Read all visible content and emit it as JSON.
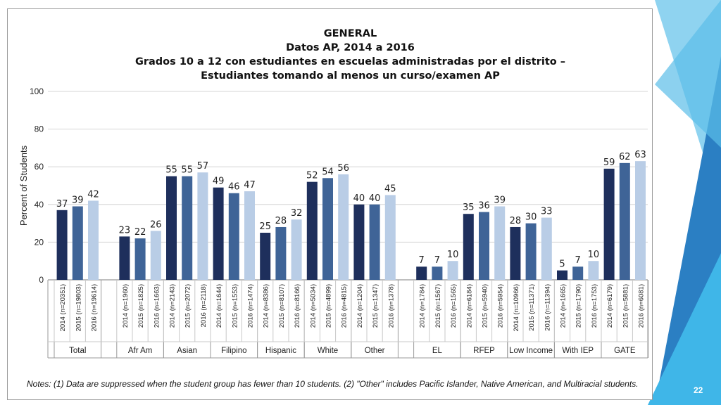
{
  "colors": {
    "accent_dark": "#1e2f5c",
    "accent_mid": "#3f6497",
    "accent_light": "#b9cde6",
    "decor_blue": "#2b7fc3",
    "decor_cyan": "#3fb6e8"
  },
  "titles": {
    "line1": "GENERAL",
    "line2": "Datos AP, 2014 a 2016",
    "line3": "Grados 10 a 12 con estudiantes en escuelas administradas por el distrito –",
    "line4": "Estudiantes tomando al menos un curso/examen AP"
  },
  "notes": "Notes: (1) Data are suppressed when the student group has fewer than 10 students. (2) \"Other\" includes Pacific Islander, Native American, and Multiracial students.",
  "page_number": "22",
  "chart_data": {
    "type": "bar",
    "title": "GENERAL Datos AP, 2014 a 2016",
    "ylabel": "Percent of Students",
    "ylim": [
      0,
      100
    ],
    "yticks": [
      0,
      20,
      40,
      60,
      80,
      100
    ],
    "grid": true,
    "legend": "none",
    "series_colors": [
      "#1e2f5c",
      "#3f6497",
      "#b9cde6"
    ],
    "groups": [
      {
        "name": "Total",
        "bars": [
          {
            "label": "2014 (n=20351)",
            "value": 37
          },
          {
            "label": "2015 (n=19803)",
            "value": 39
          },
          {
            "label": "2016 (n=19614)",
            "value": 42
          }
        ]
      },
      {
        "name": "Afr Am",
        "bars": [
          {
            "label": "2014 (n=1960)",
            "value": 23
          },
          {
            "label": "2015 (n=1825)",
            "value": 22
          },
          {
            "label": "2016 (n=1663)",
            "value": 26
          }
        ]
      },
      {
        "name": "Asian",
        "bars": [
          {
            "label": "2014 (n=2143)",
            "value": 55
          },
          {
            "label": "2015 (n=2072)",
            "value": 55
          },
          {
            "label": "2016 (n=2118)",
            "value": 57
          }
        ]
      },
      {
        "name": "Filipino",
        "bars": [
          {
            "label": "2014 (n=1644)",
            "value": 49
          },
          {
            "label": "2015 (n=1553)",
            "value": 46
          },
          {
            "label": "2016 (n=1474)",
            "value": 47
          }
        ]
      },
      {
        "name": "Hispanic",
        "bars": [
          {
            "label": "2014 (n=8386)",
            "value": 25
          },
          {
            "label": "2015 (n=8107)",
            "value": 28
          },
          {
            "label": "2016 (n=8166)",
            "value": 32
          }
        ]
      },
      {
        "name": "White",
        "bars": [
          {
            "label": "2014 (n=5034)",
            "value": 52
          },
          {
            "label": "2015 (n=4899)",
            "value": 54
          },
          {
            "label": "2016 (n=4815)",
            "value": 56
          }
        ]
      },
      {
        "name": "Other",
        "bars": [
          {
            "label": "2014 (n=1204)",
            "value": 40
          },
          {
            "label": "2015 (n=1347)",
            "value": 40
          },
          {
            "label": "2016 (n=1378)",
            "value": 45
          }
        ]
      },
      {
        "name": "EL",
        "bars": [
          {
            "label": "2014 (n=1784)",
            "value": 7
          },
          {
            "label": "2015 (n=1567)",
            "value": 7
          },
          {
            "label": "2016 (n=1565)",
            "value": 10
          }
        ]
      },
      {
        "name": "RFEP",
        "bars": [
          {
            "label": "2014 (n=6184)",
            "value": 35
          },
          {
            "label": "2015 (n=5940)",
            "value": 36
          },
          {
            "label": "2016 (n=5954)",
            "value": 39
          }
        ]
      },
      {
        "name": "Low Income",
        "bars": [
          {
            "label": "2014 (n=10966)",
            "value": 28
          },
          {
            "label": "2015 (n=11371)",
            "value": 30
          },
          {
            "label": "2016 (n=11394)",
            "value": 33
          }
        ]
      },
      {
        "name": "With IEP",
        "bars": [
          {
            "label": "2014 (n=1665)",
            "value": 5
          },
          {
            "label": "2015 (n=1790)",
            "value": 7
          },
          {
            "label": "2016 (n=1753)",
            "value": 10
          }
        ]
      },
      {
        "name": "GATE",
        "bars": [
          {
            "label": "2014 (n=6179)",
            "value": 59
          },
          {
            "label": "2015 (n=5881)",
            "value": 62
          },
          {
            "label": "2016 (n=6081)",
            "value": 63
          }
        ]
      }
    ]
  }
}
